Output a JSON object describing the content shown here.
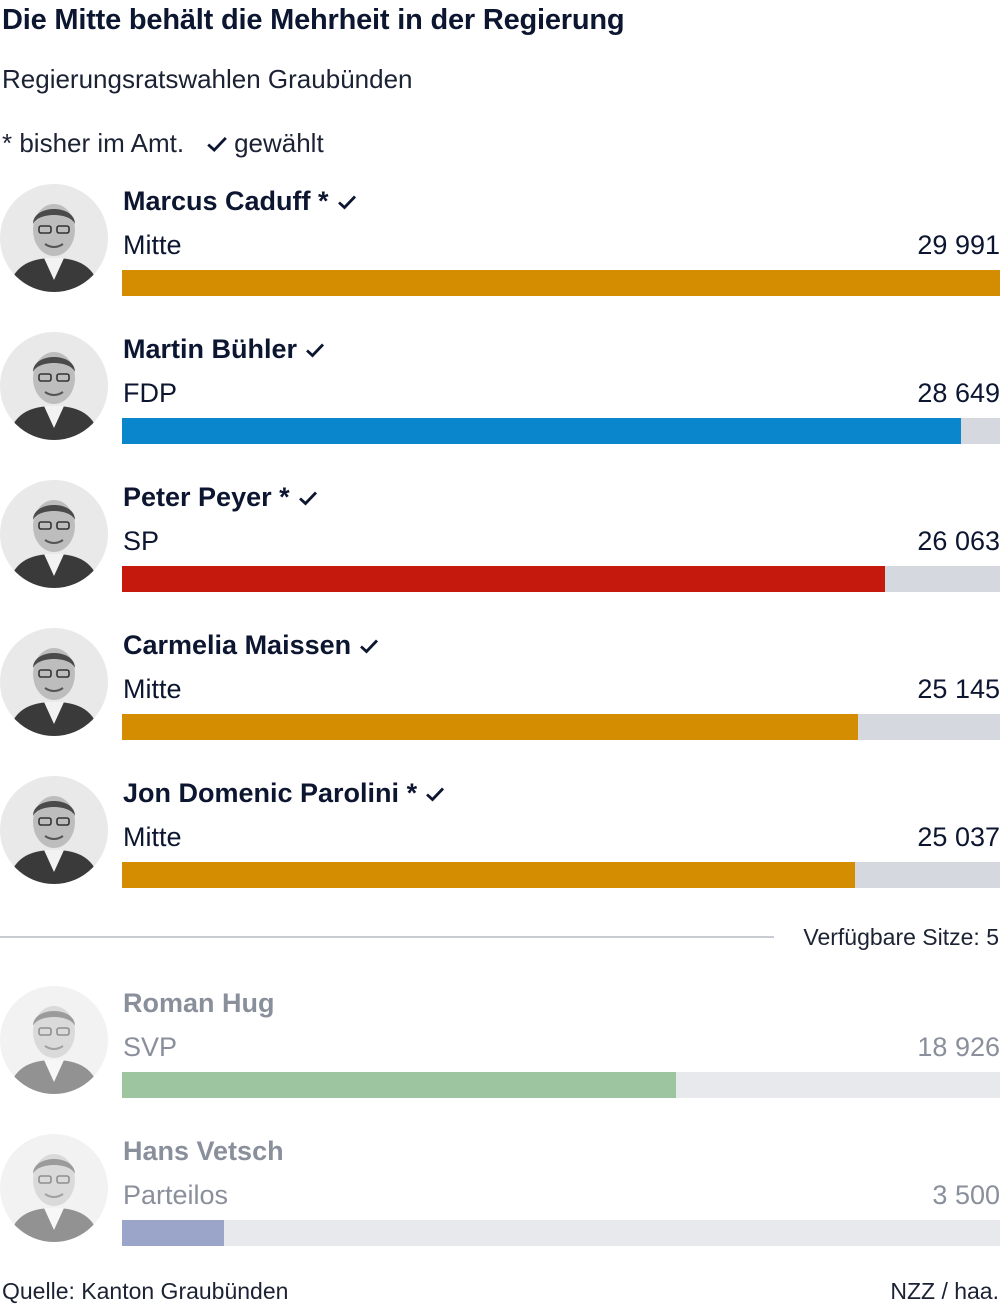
{
  "title": "Die Mitte behält die Mehrheit in der Regierung",
  "subtitle": "Regierungsratswahlen Graubünden",
  "legend": {
    "incumbent": "* bisher im Amt.",
    "elected": "gewählt"
  },
  "seats_label": "Verfügbare Sitze: 5",
  "source": "Quelle: Kanton Graubünden",
  "credit": "NZZ / haa.",
  "chart_data": {
    "type": "bar",
    "orientation": "horizontal",
    "max": 29991,
    "categories": [
      "Marcus Caduff",
      "Martin Bühler",
      "Peter Peyer",
      "Carmelia Maissen",
      "Jon Domenic Parolini",
      "Roman Hug",
      "Hans Vetsch"
    ],
    "values": [
      29991,
      28649,
      26063,
      25145,
      25037,
      18926,
      3500
    ],
    "candidates": [
      {
        "name": "Marcus Caduff",
        "incumbent": true,
        "elected": true,
        "party": "Mitte",
        "votes": 29991,
        "votes_label": "29 991",
        "color": "#d48c00"
      },
      {
        "name": "Martin Bühler",
        "incumbent": false,
        "elected": true,
        "party": "FDP",
        "votes": 28649,
        "votes_label": "28 649",
        "color": "#0a86cd"
      },
      {
        "name": "Peter Peyer",
        "incumbent": true,
        "elected": true,
        "party": "SP",
        "votes": 26063,
        "votes_label": "26 063",
        "color": "#c4190c"
      },
      {
        "name": "Carmelia Maissen",
        "incumbent": false,
        "elected": true,
        "party": "Mitte",
        "votes": 25145,
        "votes_label": "25 145",
        "color": "#d48c00"
      },
      {
        "name": "Jon Domenic Parolini",
        "incumbent": true,
        "elected": true,
        "party": "Mitte",
        "votes": 25037,
        "votes_label": "25 037",
        "color": "#d48c00"
      },
      {
        "name": "Roman Hug",
        "incumbent": false,
        "elected": false,
        "party": "SVP",
        "votes": 18926,
        "votes_label": "18 926",
        "color": "#9dc59f"
      },
      {
        "name": "Hans Vetsch",
        "incumbent": false,
        "elected": false,
        "party": "Parteilos",
        "votes": 3500,
        "votes_label": "3 500",
        "color": "#9aa5c9"
      }
    ]
  }
}
